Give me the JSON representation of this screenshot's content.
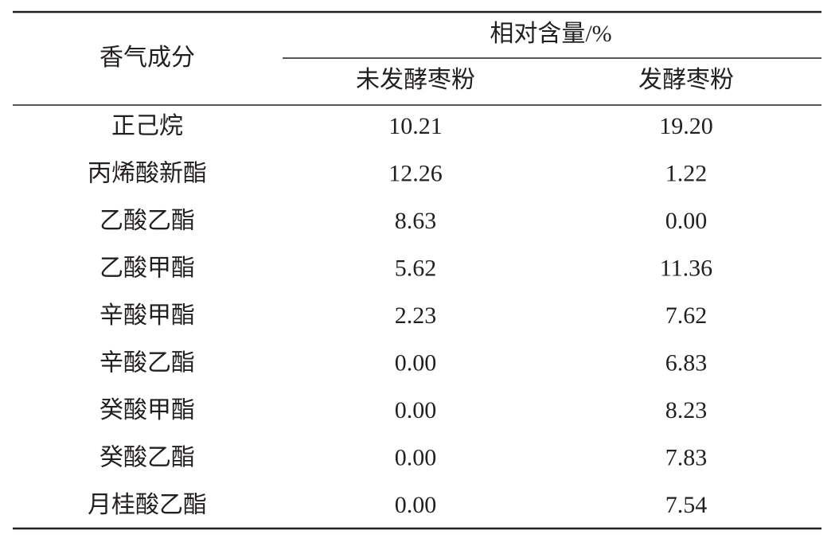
{
  "table": {
    "header": {
      "row_label": "香气成分",
      "group": "相对含量/%",
      "columns": [
        "未发酵枣粉",
        "发酵枣粉"
      ]
    },
    "rows": [
      [
        "正己烷",
        "10.21",
        "19.20"
      ],
      [
        "丙烯酸新酯",
        "12.26",
        "1.22"
      ],
      [
        "乙酸乙酯",
        "8.63",
        "0.00"
      ],
      [
        "乙酸甲酯",
        "5.62",
        "11.36"
      ],
      [
        "辛酸甲酯",
        "2.23",
        "7.62"
      ],
      [
        "辛酸乙酯",
        "0.00",
        "6.83"
      ],
      [
        "癸酸甲酯",
        "0.00",
        "8.23"
      ],
      [
        "癸酸乙酯",
        "0.00",
        "7.83"
      ],
      [
        "月桂酸乙酯",
        "0.00",
        "7.54"
      ]
    ]
  }
}
